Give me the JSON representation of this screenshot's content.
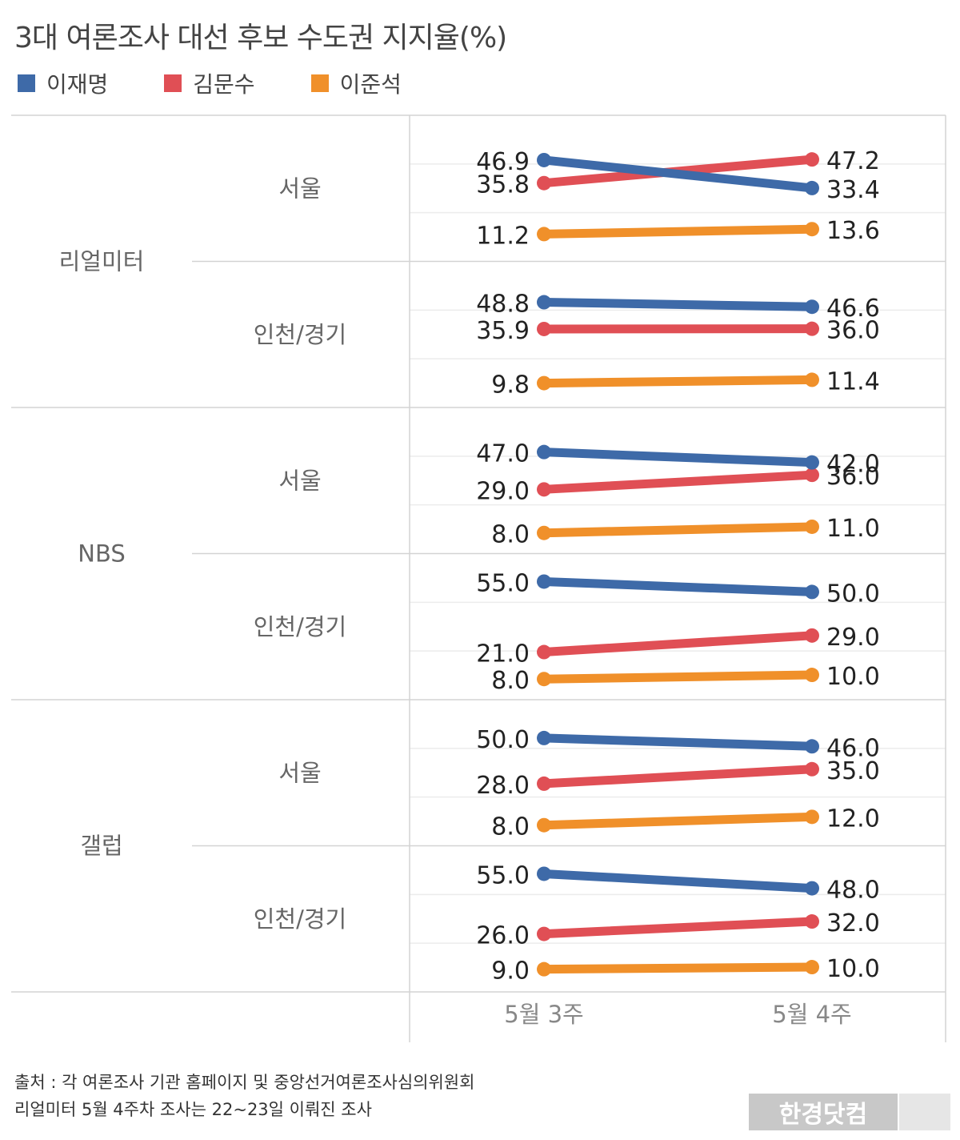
{
  "title": "3대 여론조사 대선 후보 수도권 지지율(%)",
  "legend": [
    {
      "name": "이재명",
      "color": "#3e6aa8"
    },
    {
      "name": "김문수",
      "color": "#e04f55"
    },
    {
      "name": "이준석",
      "color": "#f0902a"
    }
  ],
  "chart_data": {
    "type": "line",
    "x": [
      "5월 3주",
      "5월 4주"
    ],
    "groups": [
      {
        "pollster": "리얼미터",
        "regions": [
          {
            "region": "서울",
            "series": [
              {
                "name": "이재명",
                "values": [
                  46.9,
                  33.4
                ]
              },
              {
                "name": "김문수",
                "values": [
                  35.8,
                  47.2
                ]
              },
              {
                "name": "이준석",
                "values": [
                  11.2,
                  13.6
                ]
              }
            ]
          },
          {
            "region": "인천/경기",
            "series": [
              {
                "name": "이재명",
                "values": [
                  48.8,
                  46.6
                ]
              },
              {
                "name": "김문수",
                "values": [
                  35.9,
                  36.0
                ]
              },
              {
                "name": "이준석",
                "values": [
                  9.8,
                  11.4
                ]
              }
            ]
          }
        ]
      },
      {
        "pollster": "NBS",
        "regions": [
          {
            "region": "서울",
            "series": [
              {
                "name": "이재명",
                "values": [
                  47.0,
                  42.0
                ]
              },
              {
                "name": "김문수",
                "values": [
                  29.0,
                  36.0
                ]
              },
              {
                "name": "이준석",
                "values": [
                  8.0,
                  11.0
                ]
              }
            ]
          },
          {
            "region": "인천/경기",
            "series": [
              {
                "name": "이재명",
                "values": [
                  55.0,
                  50.0
                ]
              },
              {
                "name": "김문수",
                "values": [
                  21.0,
                  29.0
                ]
              },
              {
                "name": "이준석",
                "values": [
                  8.0,
                  10.0
                ]
              }
            ]
          }
        ]
      },
      {
        "pollster": "갤럽",
        "regions": [
          {
            "region": "서울",
            "series": [
              {
                "name": "이재명",
                "values": [
                  50.0,
                  46.0
                ]
              },
              {
                "name": "김문수",
                "values": [
                  28.0,
                  35.0
                ]
              },
              {
                "name": "이준석",
                "values": [
                  8.0,
                  12.0
                ]
              }
            ]
          },
          {
            "region": "인천/경기",
            "series": [
              {
                "name": "이재명",
                "values": [
                  55.0,
                  48.0
                ]
              },
              {
                "name": "김문수",
                "values": [
                  26.0,
                  32.0
                ]
              },
              {
                "name": "이준석",
                "values": [
                  9.0,
                  10.0
                ]
              }
            ]
          }
        ]
      }
    ]
  },
  "footer": {
    "source": "출처 : 각 여론조사 기관 홈페이지 및 중앙선거여론조사심의위원회",
    "note": "리얼미터 5월 4주차 조사는 22~23일 이뤄진 조사"
  },
  "watermark": "한경닷컴"
}
